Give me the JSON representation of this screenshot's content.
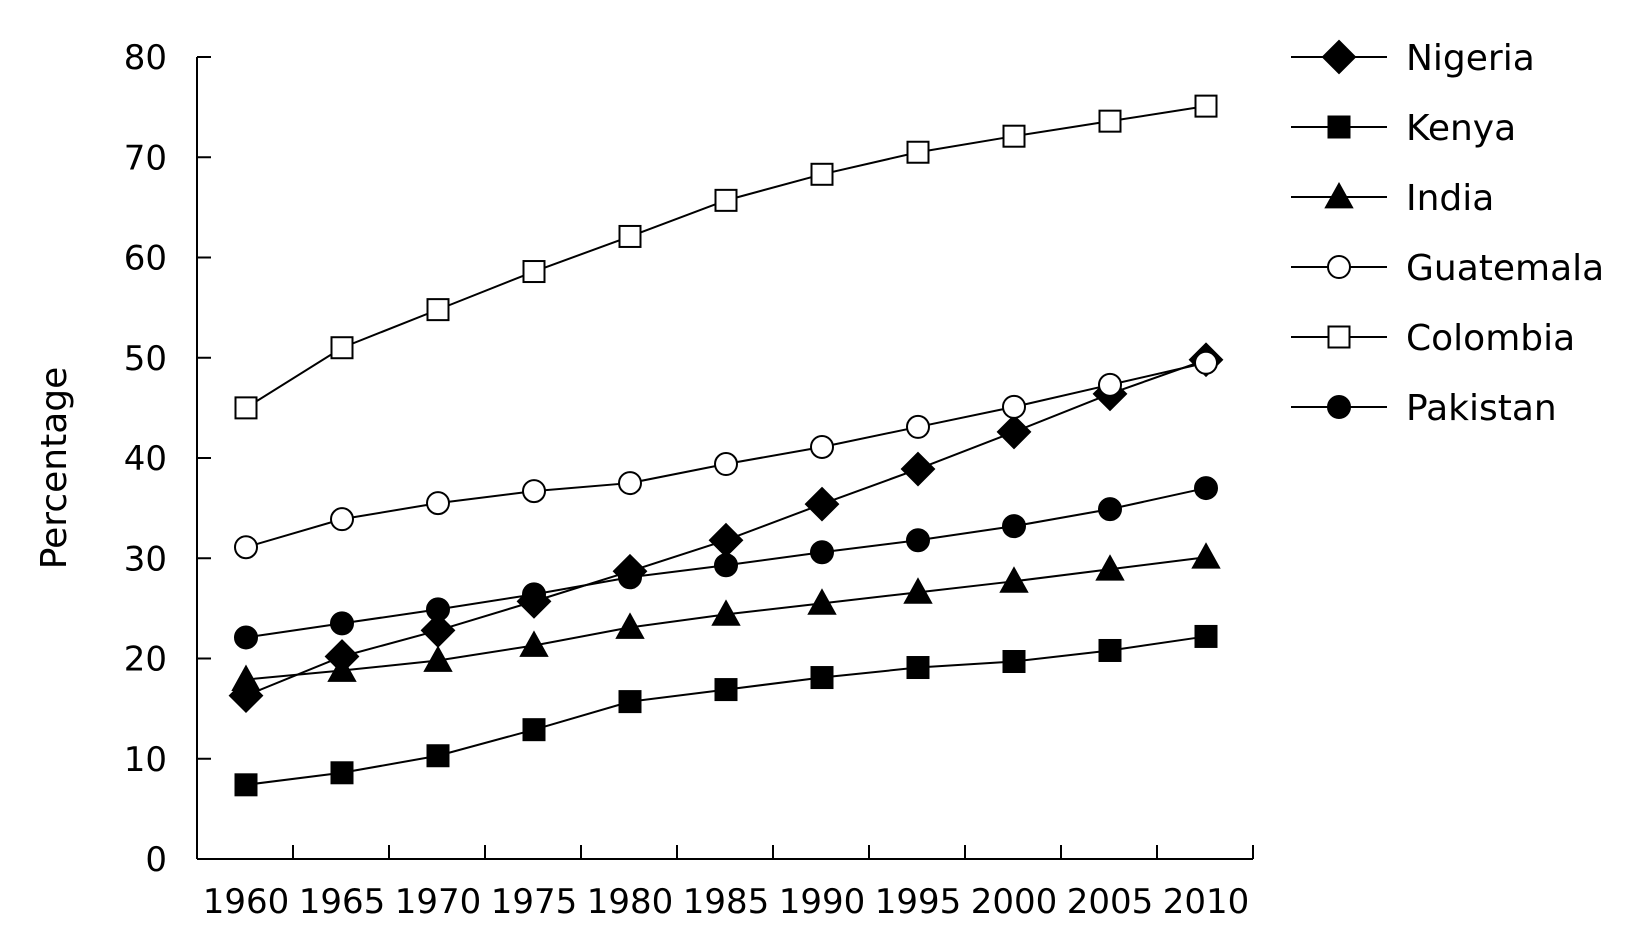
{
  "chart_data": {
    "type": "line",
    "title": "",
    "xlabel": "",
    "ylabel": "Percentage",
    "ylim": [
      0,
      80
    ],
    "yticks": [
      0,
      10,
      20,
      30,
      40,
      50,
      60,
      70,
      80
    ],
    "x": [
      1960,
      1965,
      1970,
      1975,
      1980,
      1985,
      1990,
      1995,
      2000,
      2005,
      2010
    ],
    "grid": false,
    "legend_position": "right",
    "series": [
      {
        "name": "Nigeria",
        "marker": "diamond-filled",
        "values": [
          16.3,
          20.2,
          22.8,
          25.7,
          28.7,
          31.8,
          35.4,
          38.9,
          42.6,
          46.4,
          49.8
        ]
      },
      {
        "name": "Kenya",
        "marker": "square-filled",
        "values": [
          7.4,
          8.6,
          10.3,
          12.9,
          15.7,
          16.9,
          18.1,
          19.1,
          19.7,
          20.8,
          22.2
        ]
      },
      {
        "name": "India",
        "marker": "triangle-filled",
        "values": [
          17.9,
          18.8,
          19.8,
          21.3,
          23.1,
          24.4,
          25.5,
          26.6,
          27.7,
          28.9,
          30.1
        ]
      },
      {
        "name": "Guatemala",
        "marker": "circle-open",
        "values": [
          31.1,
          33.9,
          35.5,
          36.7,
          37.5,
          39.4,
          41.1,
          43.1,
          45.1,
          47.3,
          49.5
        ]
      },
      {
        "name": "Colombia",
        "marker": "square-open",
        "values": [
          45.0,
          51.0,
          54.8,
          58.6,
          62.1,
          65.7,
          68.3,
          70.5,
          72.1,
          73.6,
          75.1
        ]
      },
      {
        "name": "Pakistan",
        "marker": "circle-filled",
        "values": [
          22.1,
          23.5,
          24.9,
          26.4,
          28.1,
          29.3,
          30.6,
          31.8,
          33.2,
          34.9,
          37.0
        ]
      }
    ]
  }
}
